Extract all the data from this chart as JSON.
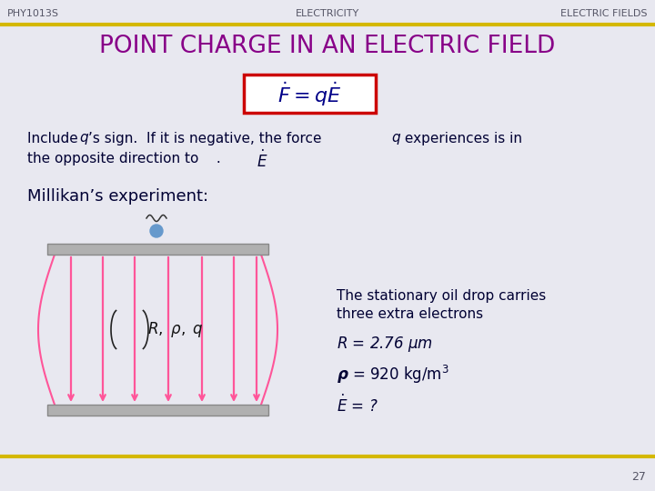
{
  "bg_color": "#e8e8f0",
  "header_left": "PHY1013S",
  "header_center": "ELECTRICITY",
  "header_right": "ELECTRIC FIELDS",
  "header_color": "#555566",
  "gold_line_color": "#d4b800",
  "title": "POINT CHARGE IN AN ELECTRIC FIELD",
  "title_color": "#880088",
  "formula_box_color": "#cc0000",
  "formula_text_color": "#000088",
  "body_text_color": "#000033",
  "page_number": "27",
  "plate_color": "#aaaaaa",
  "arrow_color": "#ff5599",
  "drop_color": "#6699cc"
}
